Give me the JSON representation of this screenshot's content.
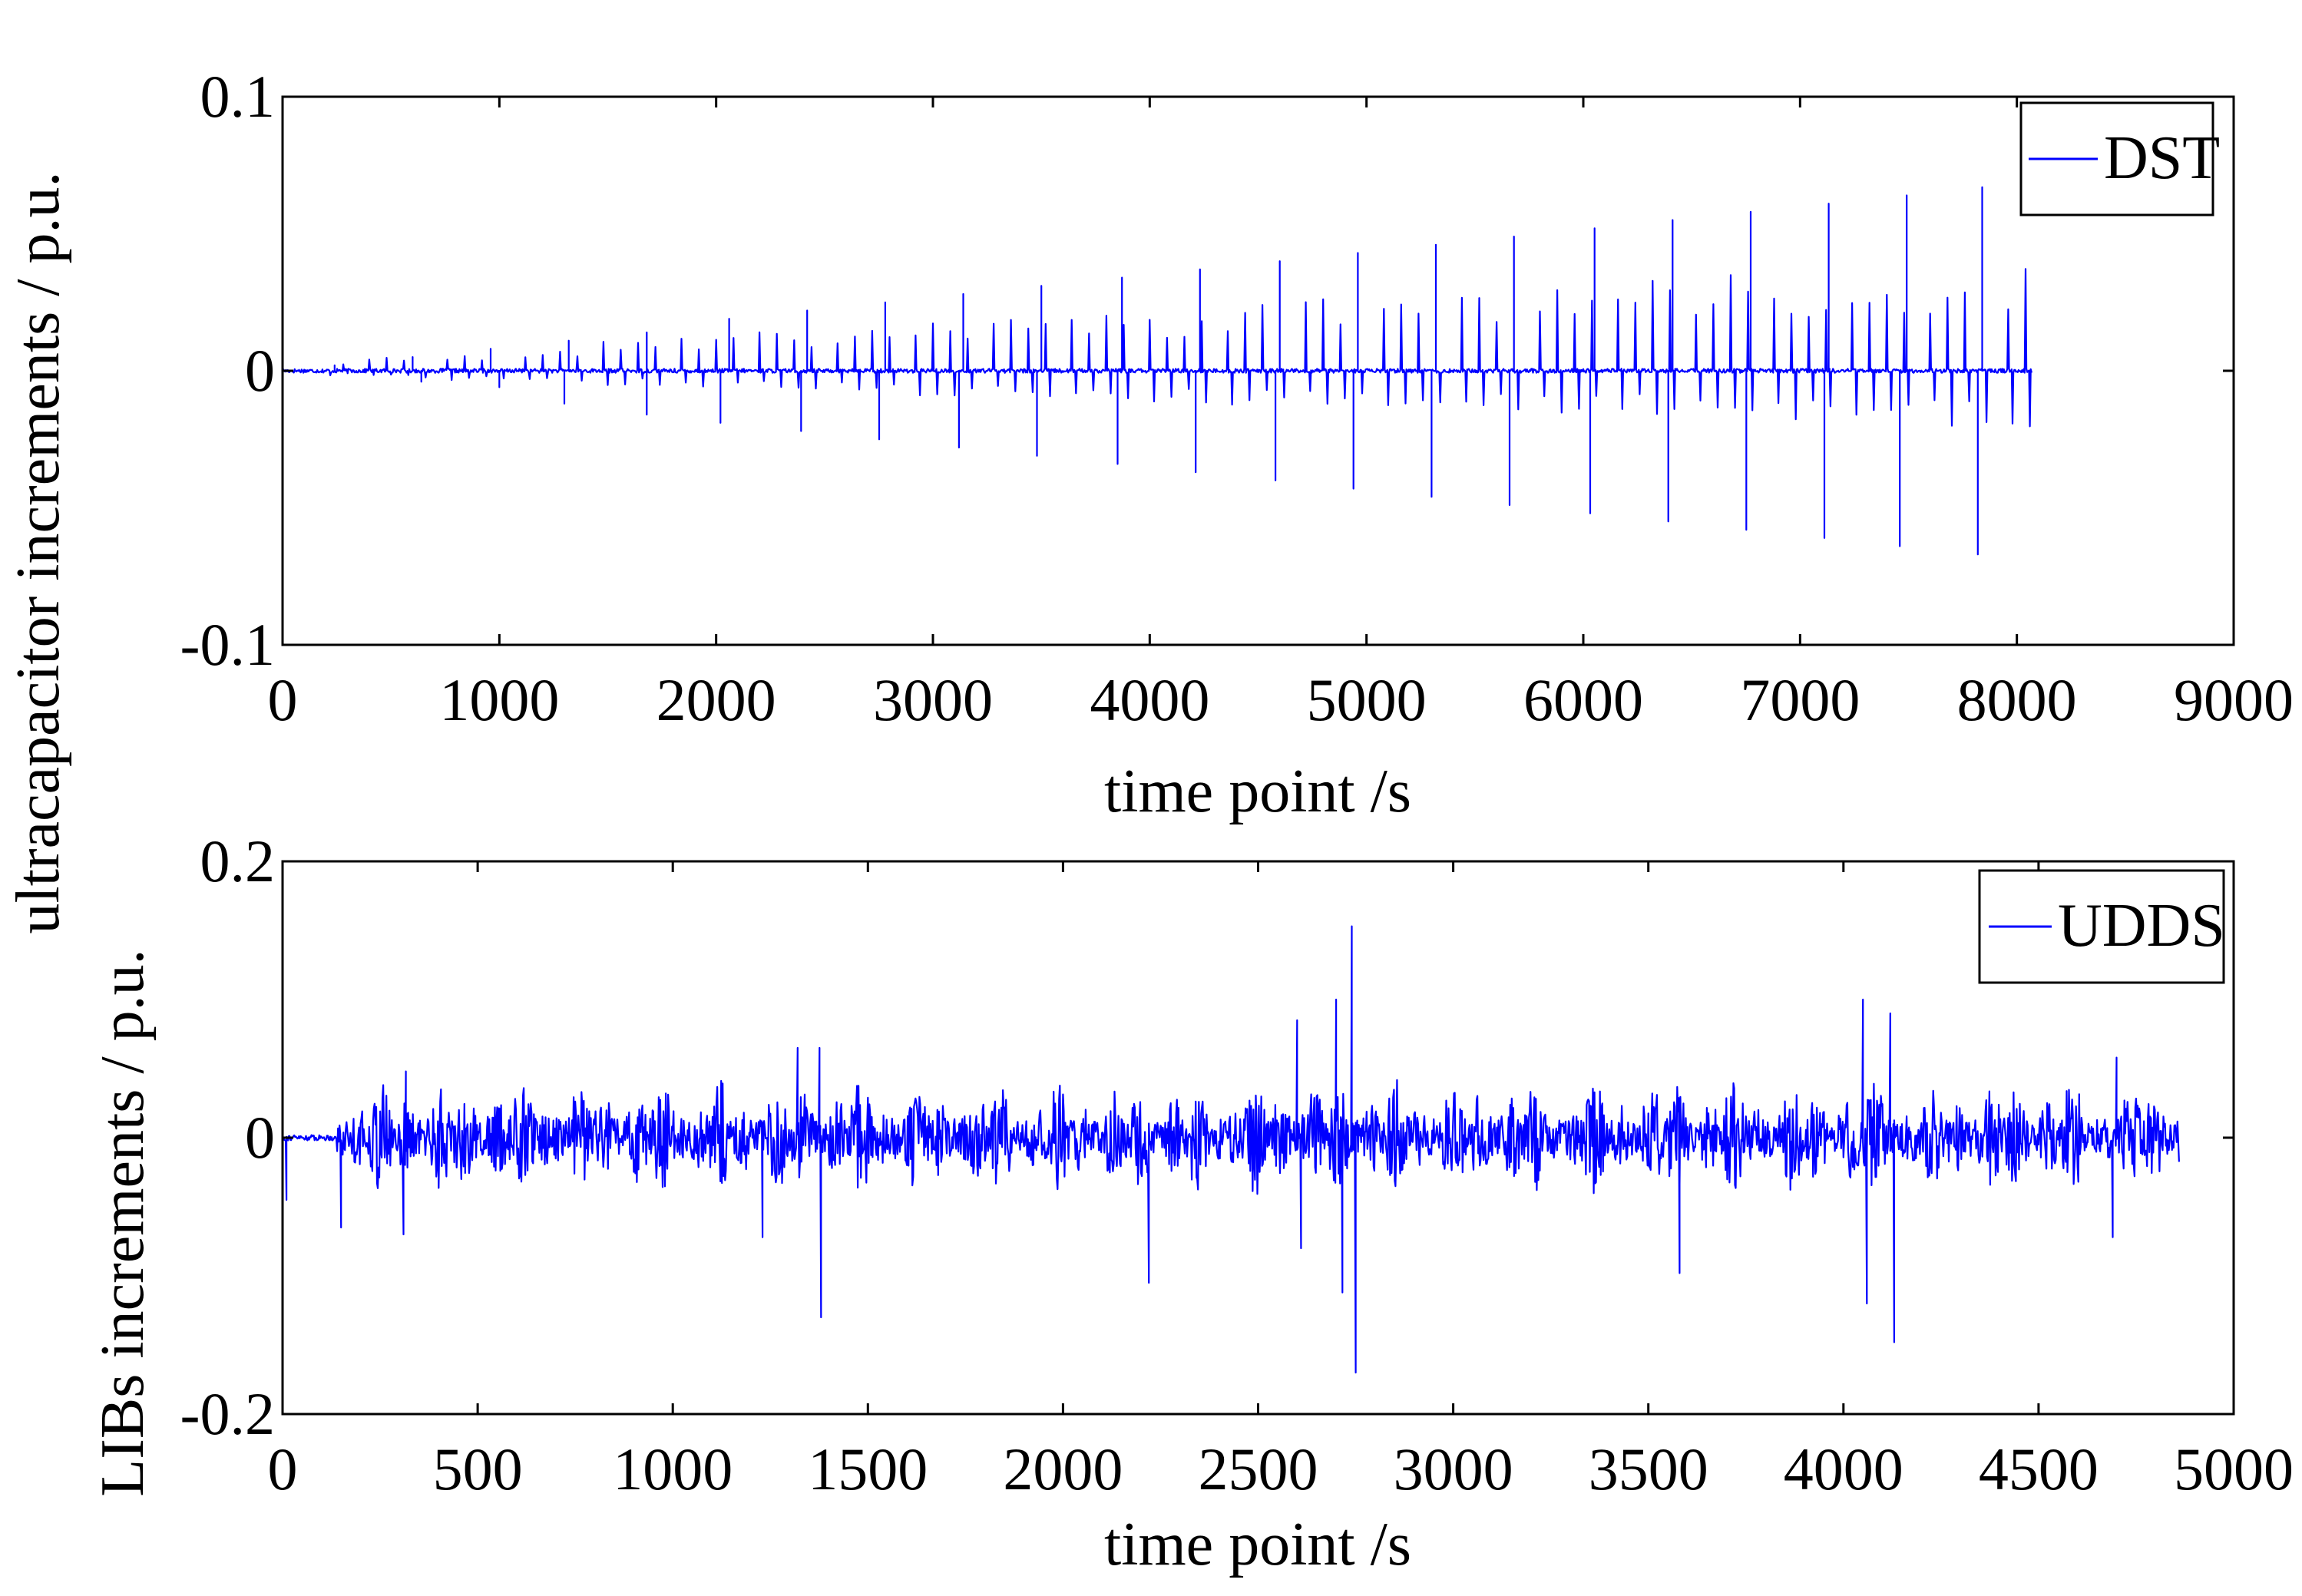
{
  "chart_data": [
    {
      "type": "line",
      "xlabel": "time point /s",
      "ylabel": "ultracapacitor increments / p.u.",
      "xlim": [
        0,
        9000
      ],
      "ylim": [
        -0.1,
        0.1
      ],
      "x_ticks": [
        0,
        1000,
        2000,
        3000,
        4000,
        5000,
        6000,
        7000,
        8000,
        9000
      ],
      "x_tick_labels": [
        "0",
        "1000",
        "2000",
        "3000",
        "4000",
        "5000",
        "6000",
        "7000",
        "8000",
        "9000"
      ],
      "y_ticks": [
        -0.1,
        0,
        0.1
      ],
      "y_tick_labels": [
        "-0.1",
        "0",
        "0.1"
      ],
      "legend_position": "top-right",
      "grid": false,
      "x_end": 8070,
      "series": [
        {
          "name": "DST",
          "color": "#0000ff",
          "spikes": [
            {
              "x": 240,
              "v": 0.002
            },
            {
              "x": 600,
              "v": 0.005
            },
            {
              "x": 640,
              "v": -0.004
            },
            {
              "x": 960,
              "v": 0.008
            },
            {
              "x": 1000,
              "v": -0.006
            },
            {
              "x": 1320,
              "v": 0.011
            },
            {
              "x": 1300,
              "v": -0.012
            },
            {
              "x": 1680,
              "v": 0.014
            },
            {
              "x": 1680,
              "v": -0.016
            },
            {
              "x": 2060,
              "v": 0.019
            },
            {
              "x": 2020,
              "v": -0.019
            },
            {
              "x": 2420,
              "v": 0.022
            },
            {
              "x": 2390,
              "v": -0.022
            },
            {
              "x": 2780,
              "v": 0.025
            },
            {
              "x": 2750,
              "v": -0.025
            },
            {
              "x": 3140,
              "v": 0.028
            },
            {
              "x": 3120,
              "v": -0.028
            },
            {
              "x": 3500,
              "v": 0.031
            },
            {
              "x": 3480,
              "v": -0.031
            },
            {
              "x": 3870,
              "v": 0.034
            },
            {
              "x": 3850,
              "v": -0.034
            },
            {
              "x": 4230,
              "v": 0.037
            },
            {
              "x": 4210,
              "v": -0.037
            },
            {
              "x": 4600,
              "v": 0.04
            },
            {
              "x": 4580,
              "v": -0.04
            },
            {
              "x": 4960,
              "v": 0.043
            },
            {
              "x": 4940,
              "v": -0.043
            },
            {
              "x": 5320,
              "v": 0.046
            },
            {
              "x": 5300,
              "v": -0.046
            },
            {
              "x": 5680,
              "v": 0.049
            },
            {
              "x": 5660,
              "v": -0.049
            },
            {
              "x": 6050,
              "v": 0.052
            },
            {
              "x": 6030,
              "v": -0.052
            },
            {
              "x": 6410,
              "v": 0.055
            },
            {
              "x": 6390,
              "v": -0.055
            },
            {
              "x": 6770,
              "v": 0.058
            },
            {
              "x": 6750,
              "v": -0.058
            },
            {
              "x": 7130,
              "v": 0.061
            },
            {
              "x": 7110,
              "v": -0.061
            },
            {
              "x": 7490,
              "v": 0.064
            },
            {
              "x": 7460,
              "v": -0.064
            },
            {
              "x": 7840,
              "v": 0.067
            },
            {
              "x": 7820,
              "v": -0.067
            }
          ]
        }
      ]
    },
    {
      "type": "line",
      "xlabel": "time point /s",
      "ylabel": "LIBs increments / p.u.",
      "xlim": [
        0,
        5000
      ],
      "ylim": [
        -0.2,
        0.2
      ],
      "x_ticks": [
        0,
        500,
        1000,
        1500,
        2000,
        2500,
        3000,
        3500,
        4000,
        4500,
        5000
      ],
      "x_tick_labels": [
        "0",
        "500",
        "1000",
        "1500",
        "2000",
        "2500",
        "3000",
        "3500",
        "4000",
        "4500",
        "5000"
      ],
      "y_ticks": [
        -0.2,
        0,
        0.2
      ],
      "y_tick_labels": [
        "-0.2",
        "0",
        "0.2"
      ],
      "legend_position": "top-right",
      "grid": false,
      "x_end": 4860,
      "series": [
        {
          "name": "UDDS",
          "color": "#0000ff",
          "active_segments": [
            [
              140,
              1380
            ],
            [
              1380,
              2740
            ],
            [
              2740,
              4860
            ]
          ],
          "spikes": [
            {
              "x": 10,
              "v": -0.045
            },
            {
              "x": 150,
              "v": -0.065
            },
            {
              "x": 310,
              "v": -0.07
            },
            {
              "x": 315,
              "v": 0.048
            },
            {
              "x": 1230,
              "v": -0.072
            },
            {
              "x": 1320,
              "v": 0.065
            },
            {
              "x": 1375,
              "v": 0.065
            },
            {
              "x": 1380,
              "v": -0.13
            },
            {
              "x": 2220,
              "v": -0.105
            },
            {
              "x": 2600,
              "v": 0.085
            },
            {
              "x": 2610,
              "v": -0.08
            },
            {
              "x": 2700,
              "v": 0.1
            },
            {
              "x": 2715,
              "v": -0.112
            },
            {
              "x": 2740,
              "v": 0.153
            },
            {
              "x": 2750,
              "v": -0.17
            },
            {
              "x": 3580,
              "v": -0.098
            },
            {
              "x": 4050,
              "v": 0.1
            },
            {
              "x": 4060,
              "v": -0.12
            },
            {
              "x": 4120,
              "v": 0.09
            },
            {
              "x": 4130,
              "v": -0.148
            },
            {
              "x": 4690,
              "v": -0.072
            },
            {
              "x": 4700,
              "v": 0.058
            }
          ]
        }
      ]
    }
  ],
  "shared_ylabel": "ultracapacitor increments / p.u."
}
